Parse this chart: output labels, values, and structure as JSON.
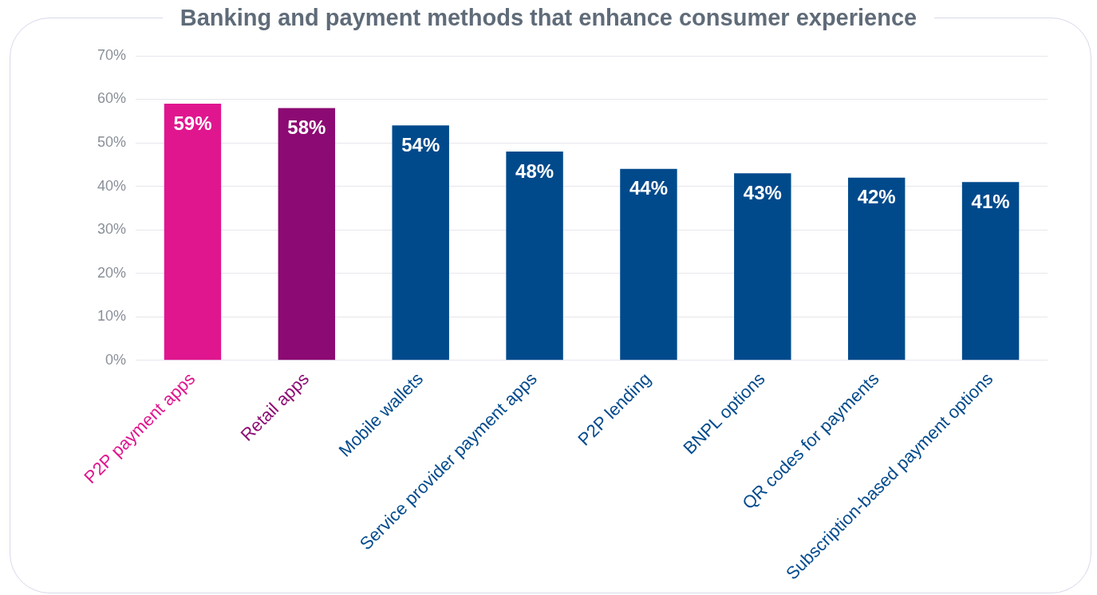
{
  "chart_data": {
    "type": "bar",
    "title": "Banking and payment methods that enhance consumer experience",
    "categories": [
      "P2P payment apps",
      "Retail apps",
      "Mobile wallets",
      "Service provider payment apps",
      "P2P lending",
      "BNPL options",
      "QR codes for payments",
      "Subscription-based payment options"
    ],
    "values": [
      59,
      58,
      54,
      48,
      44,
      43,
      42,
      41
    ],
    "colors": [
      "#e0168f",
      "#8c0a73",
      "#004a8c",
      "#004a8c",
      "#004a8c",
      "#004a8c",
      "#004a8c",
      "#004a8c"
    ],
    "ylim": [
      0,
      70
    ],
    "yticks": [
      {
        "value": 0,
        "label": "0%"
      },
      {
        "value": 10,
        "label": "10%"
      },
      {
        "value": 20,
        "label": "20%"
      },
      {
        "value": 30,
        "label": "30%"
      },
      {
        "value": 40,
        "label": "40%"
      },
      {
        "value": 50,
        "label": "50%"
      },
      {
        "value": 60,
        "label": "60%"
      },
      {
        "value": 70,
        "label": "70%"
      }
    ],
    "value_labels": [
      "59%",
      "58%",
      "54%",
      "48%",
      "44%",
      "43%",
      "42%",
      "41%"
    ],
    "grid": "y",
    "legend": false
  }
}
